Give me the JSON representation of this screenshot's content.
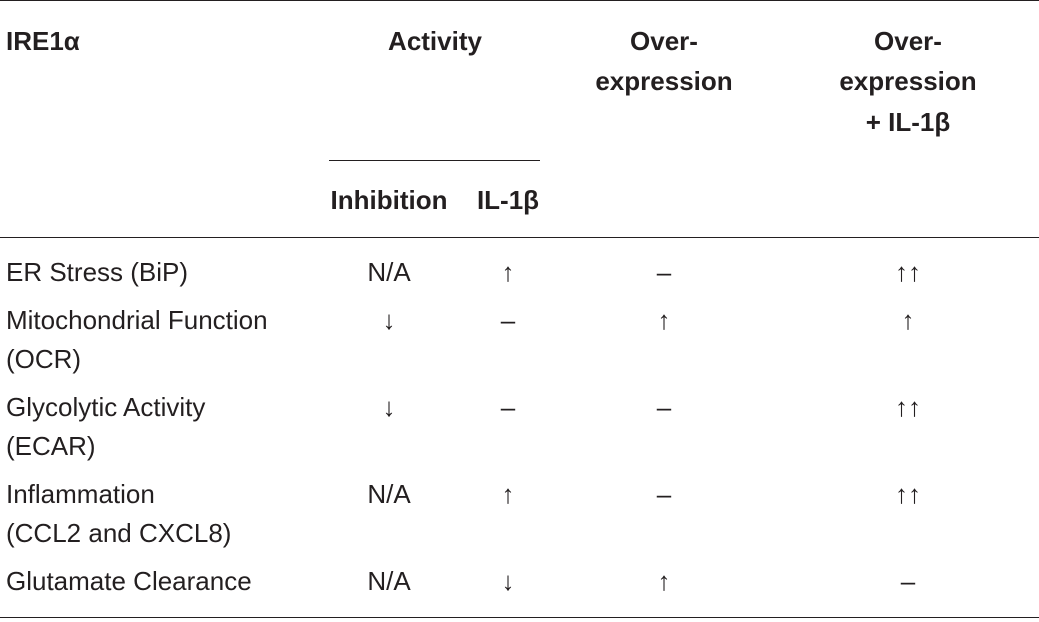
{
  "header": {
    "col_label": "IRE1α",
    "activity": "Activity",
    "overexpression_line1": "Over-",
    "overexpression_line2": "expression",
    "overexp_il_line1": "Over-",
    "overexp_il_line2": "expression",
    "overexp_il_line3": "+ IL-1β",
    "inhibition": "Inhibition",
    "il1b": "IL-1β"
  },
  "rows": [
    {
      "label_line1": "ER Stress (BiP)",
      "label_line2": "",
      "inhibition": "N/A",
      "il1b": "↑",
      "overexpression": "–",
      "overexp_il1b": "↑↑"
    },
    {
      "label_line1": "Mitochondrial Function",
      "label_line2": "(OCR)",
      "inhibition": "↓",
      "il1b": "–",
      "overexpression": "↑",
      "overexp_il1b": "↑"
    },
    {
      "label_line1": "Glycolytic Activity",
      "label_line2": "(ECAR)",
      "inhibition": "↓",
      "il1b": "–",
      "overexpression": "–",
      "overexp_il1b": "↑↑"
    },
    {
      "label_line1": "Inflammation",
      "label_line2": "(CCL2 and CXCL8)",
      "inhibition": "N/A",
      "il1b": "↑",
      "overexpression": "–",
      "overexp_il1b": "↑↑"
    },
    {
      "label_line1": "Glutamate Clearance",
      "label_line2": "",
      "inhibition": "N/A",
      "il1b": "↓",
      "overexpression": "↑",
      "overexp_il1b": "–"
    }
  ]
}
